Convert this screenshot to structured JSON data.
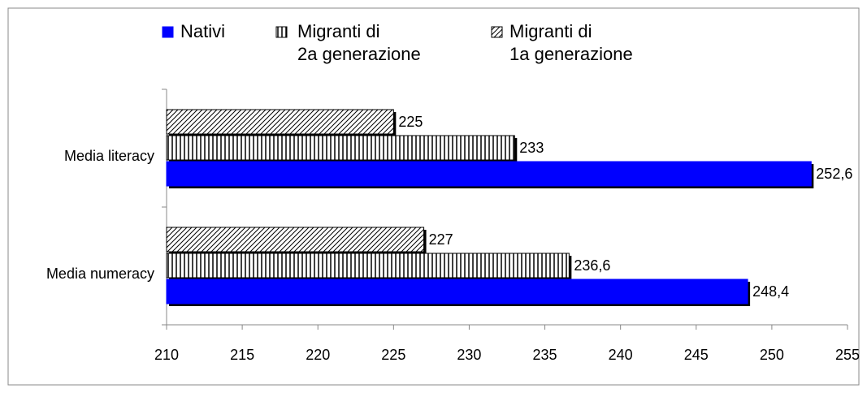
{
  "chart_data": {
    "type": "hbar",
    "categories": [
      "Media literacy",
      "Media numeracy"
    ],
    "series": [
      {
        "name": "Migranti di\n1a generazione",
        "color": "#ffffff",
        "pattern": "diagonal",
        "values": [
          225,
          227
        ],
        "value_labels": [
          "225",
          "227"
        ]
      },
      {
        "name": "Migranti di\n2a generazione",
        "color": "#ffffff",
        "pattern": "vertical",
        "values": [
          233,
          236.6
        ],
        "value_labels": [
          "233",
          "236,6"
        ]
      },
      {
        "name": "Nativi",
        "color": "#0000ff",
        "values": [
          252.6,
          248.4
        ],
        "value_labels": [
          "252,6",
          "248,4"
        ]
      }
    ],
    "xlim": [
      210,
      255
    ],
    "xticks": [
      210,
      215,
      220,
      225,
      230,
      235,
      240,
      245,
      250,
      255
    ]
  }
}
